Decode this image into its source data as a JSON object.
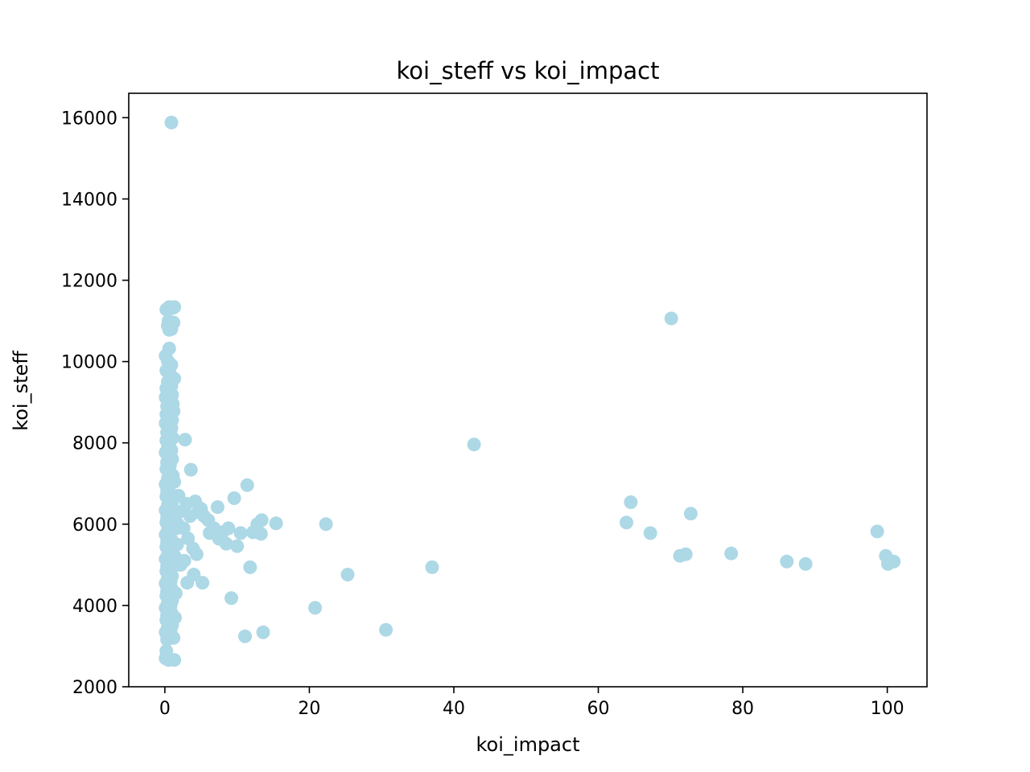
{
  "chart_data": {
    "type": "scatter",
    "title": "koi_steff vs koi_impact",
    "xlabel": "koi_impact",
    "ylabel": "koi_steff",
    "xlim": [
      -5,
      105.5
    ],
    "ylim": [
      2000,
      16600
    ],
    "xticks": [
      0,
      20,
      40,
      60,
      80,
      100
    ],
    "yticks": [
      2000,
      4000,
      6000,
      8000,
      10000,
      12000,
      14000,
      16000
    ],
    "grid": false,
    "legend": "none",
    "marker_color": "#add8e6",
    "series": [
      {
        "points": [
          [
            0.9,
            15880
          ],
          [
            0.2,
            11280
          ],
          [
            0.6,
            11340
          ],
          [
            1.1,
            11320
          ],
          [
            1.3,
            11340
          ],
          [
            0.5,
            11000
          ],
          [
            1.2,
            10960
          ],
          [
            0.4,
            10880
          ],
          [
            0.6,
            10780
          ],
          [
            0.9,
            10800
          ],
          [
            0.6,
            10320
          ],
          [
            0.1,
            10140
          ],
          [
            0.4,
            10020
          ],
          [
            0.9,
            9920
          ],
          [
            0.2,
            9780
          ],
          [
            0.7,
            9700
          ],
          [
            1.3,
            9580
          ],
          [
            0.4,
            9500
          ],
          [
            0.9,
            9400
          ],
          [
            0.2,
            9340
          ],
          [
            0.6,
            9200
          ],
          [
            1.0,
            9180
          ],
          [
            0.1,
            9120
          ],
          [
            0.5,
            9020
          ],
          [
            1.1,
            8960
          ],
          [
            0.3,
            8900
          ],
          [
            0.8,
            8820
          ],
          [
            1.2,
            8780
          ],
          [
            0.2,
            8700
          ],
          [
            0.6,
            8620
          ],
          [
            1.0,
            8560
          ],
          [
            0.1,
            8480
          ],
          [
            0.5,
            8420
          ],
          [
            0.9,
            8360
          ],
          [
            0.3,
            8260
          ],
          [
            0.7,
            8180
          ],
          [
            1.1,
            8120
          ],
          [
            0.2,
            8060
          ],
          [
            0.6,
            7980
          ],
          [
            0.4,
            7880
          ],
          [
            0.9,
            7820
          ],
          [
            0.1,
            7760
          ],
          [
            0.5,
            7680
          ],
          [
            1.0,
            7600
          ],
          [
            0.3,
            7520
          ],
          [
            0.7,
            7440
          ],
          [
            0.2,
            7360
          ],
          [
            0.6,
            7280
          ],
          [
            1.1,
            7200
          ],
          [
            0.4,
            7120
          ],
          [
            0.8,
            7040
          ],
          [
            0.1,
            6980
          ],
          [
            0.5,
            6900
          ],
          [
            1.3,
            7040
          ],
          [
            0.3,
            6820
          ],
          [
            0.7,
            6760
          ],
          [
            0.2,
            6680
          ],
          [
            0.6,
            6600
          ],
          [
            1.0,
            6540
          ],
          [
            0.4,
            6460
          ],
          [
            0.8,
            6400
          ],
          [
            0.1,
            6340
          ],
          [
            0.5,
            6280
          ],
          [
            0.9,
            6220
          ],
          [
            0.3,
            6160
          ],
          [
            0.7,
            6100
          ],
          [
            0.2,
            6040
          ],
          [
            0.6,
            5980
          ],
          [
            1.0,
            5920
          ],
          [
            0.4,
            5860
          ],
          [
            0.8,
            5800
          ],
          [
            0.1,
            5740
          ],
          [
            0.5,
            5680
          ],
          [
            0.9,
            5620
          ],
          [
            0.3,
            5560
          ],
          [
            0.7,
            5500
          ],
          [
            0.2,
            5440
          ],
          [
            0.6,
            5380
          ],
          [
            1.0,
            5320
          ],
          [
            0.4,
            5260
          ],
          [
            0.8,
            5200
          ],
          [
            0.1,
            5140
          ],
          [
            0.5,
            5080
          ],
          [
            0.9,
            5020
          ],
          [
            0.3,
            4960
          ],
          [
            0.7,
            4900
          ],
          [
            0.2,
            4840
          ],
          [
            0.6,
            4780
          ],
          [
            1.0,
            4720
          ],
          [
            0.4,
            4660
          ],
          [
            0.8,
            4600
          ],
          [
            0.1,
            4540
          ],
          [
            0.5,
            4480
          ],
          [
            0.9,
            4420
          ],
          [
            0.3,
            4360
          ],
          [
            0.7,
            4300
          ],
          [
            0.2,
            4240
          ],
          [
            0.6,
            4180
          ],
          [
            1.0,
            4120
          ],
          [
            0.4,
            4060
          ],
          [
            0.8,
            4000
          ],
          [
            0.1,
            3940
          ],
          [
            0.5,
            3880
          ],
          [
            0.9,
            3820
          ],
          [
            0.3,
            3760
          ],
          [
            0.7,
            3700
          ],
          [
            0.2,
            3640
          ],
          [
            0.6,
            3580
          ],
          [
            1.0,
            3520
          ],
          [
            0.4,
            3460
          ],
          [
            0.8,
            3400
          ],
          [
            0.1,
            3340
          ],
          [
            0.5,
            3280
          ],
          [
            0.9,
            3220
          ],
          [
            0.3,
            3160
          ],
          [
            0.2,
            2880
          ],
          [
            0.1,
            2700
          ],
          [
            0.5,
            2660
          ],
          [
            1.3,
            2660
          ],
          [
            1.2,
            3200
          ],
          [
            1.4,
            3700
          ],
          [
            1.5,
            4300
          ],
          [
            1.6,
            5000
          ],
          [
            1.7,
            5500
          ],
          [
            1.8,
            6000
          ],
          [
            1.9,
            6700
          ],
          [
            2.0,
            6300
          ],
          [
            1.4,
            5200
          ],
          [
            2.2,
            5000
          ],
          [
            1.6,
            5900
          ],
          [
            2.8,
            8080
          ],
          [
            3.6,
            7340
          ],
          [
            4.2,
            6560
          ],
          [
            3.0,
            6500
          ],
          [
            4.6,
            6300
          ],
          [
            5.0,
            6380
          ],
          [
            3.5,
            6200
          ],
          [
            2.6,
            5900
          ],
          [
            3.2,
            5650
          ],
          [
            3.9,
            5400
          ],
          [
            4.4,
            5260
          ],
          [
            2.7,
            5100
          ],
          [
            3.1,
            4560
          ],
          [
            4.0,
            4760
          ],
          [
            5.2,
            4560
          ],
          [
            5.4,
            6200
          ],
          [
            6.0,
            6100
          ],
          [
            6.2,
            5780
          ],
          [
            6.8,
            5900
          ],
          [
            7.3,
            6420
          ],
          [
            7.5,
            5640
          ],
          [
            8.0,
            5800
          ],
          [
            8.5,
            5520
          ],
          [
            8.8,
            5900
          ],
          [
            9.2,
            4180
          ],
          [
            9.6,
            6640
          ],
          [
            10.0,
            5460
          ],
          [
            10.5,
            5780
          ],
          [
            11.1,
            3240
          ],
          [
            11.4,
            6960
          ],
          [
            11.8,
            4940
          ],
          [
            12.2,
            5800
          ],
          [
            12.8,
            6000
          ],
          [
            13.3,
            5760
          ],
          [
            13.4,
            6100
          ],
          [
            13.6,
            3340
          ],
          [
            15.4,
            6020
          ],
          [
            20.8,
            3940
          ],
          [
            22.3,
            6000
          ],
          [
            25.3,
            4760
          ],
          [
            30.6,
            3400
          ],
          [
            37.0,
            4940
          ],
          [
            42.8,
            7960
          ],
          [
            63.9,
            6040
          ],
          [
            64.5,
            6540
          ],
          [
            67.2,
            5780
          ],
          [
            70.1,
            11060
          ],
          [
            71.3,
            5220
          ],
          [
            72.1,
            5260
          ],
          [
            72.8,
            6260
          ],
          [
            78.4,
            5280
          ],
          [
            86.1,
            5080
          ],
          [
            88.7,
            5020
          ],
          [
            98.6,
            5820
          ],
          [
            99.8,
            5220
          ],
          [
            100.1,
            5020
          ],
          [
            100.9,
            5080
          ]
        ]
      }
    ]
  }
}
